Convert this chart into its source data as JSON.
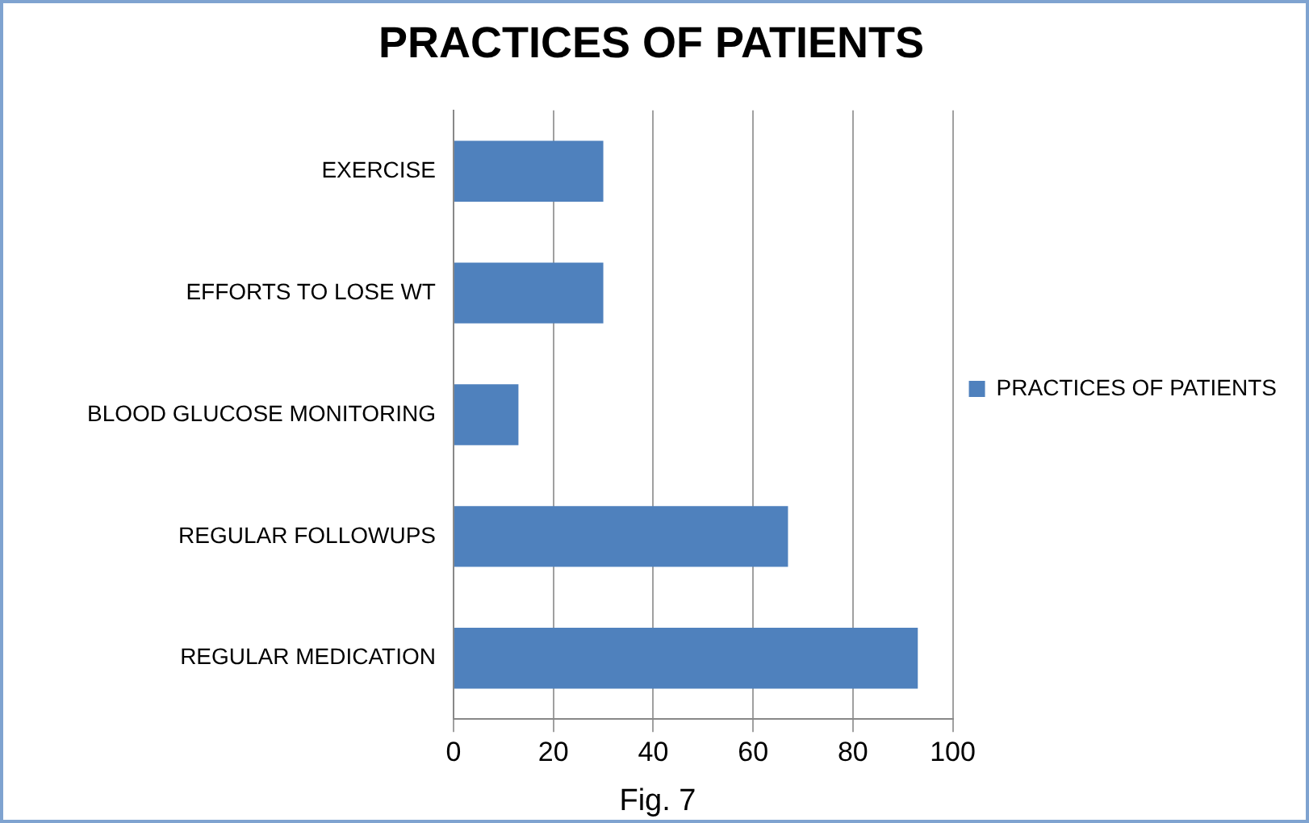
{
  "chart_data": {
    "type": "bar",
    "orientation": "horizontal",
    "title": "PRACTICES OF PATIENTS",
    "categories": [
      "EXERCISE",
      "EFFORTS TO LOSE WT",
      "BLOOD GLUCOSE MONITORING",
      "REGULAR FOLLOWUPS",
      "REGULAR MEDICATION"
    ],
    "series": [
      {
        "name": "PRACTICES OF PATIENTS",
        "color": "#4f81bd",
        "values": [
          30,
          30,
          13,
          67,
          93
        ]
      }
    ],
    "xlim": [
      0,
      100
    ],
    "xticks": [
      0,
      20,
      40,
      60,
      80,
      100
    ],
    "grid": "x",
    "legend": "right",
    "annotations": [
      "Fig. 7"
    ]
  }
}
